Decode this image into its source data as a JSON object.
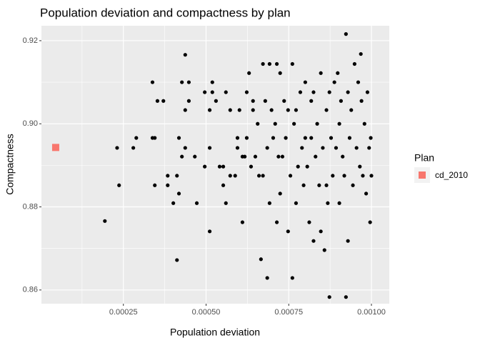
{
  "chart_data": {
    "type": "scatter",
    "title": "Population deviation and compactness by plan",
    "x_label": "Population deviation",
    "y_label": "Compactness",
    "legend_title": "Plan",
    "legend_position": "right",
    "grid": true,
    "xlim": [
      2.2e-06,
      0.001054
    ],
    "ylim": [
      0.8567,
      0.9236
    ],
    "xticks": [
      0.00025,
      {
        "value": 0.0005,
        "label": "0.00050"
      },
      0.00075,
      {
        "value": 0.001,
        "label": "0.00100"
      }
    ],
    "yticks": [
      0.86,
      0.88,
      {
        "value": 0.9,
        "label": "0.90"
      },
      0.92
    ],
    "series": [
      {
        "color": "#000000",
        "marker": "circle",
        "x": [
          0.000194,
          0.000231,
          0.000237,
          0.00028,
          0.000289,
          0.000338,
          0.000338,
          0.000345,
          0.000345,
          0.000353,
          0.000371,
          0.000384,
          0.000384,
          0.000401,
          0.000412,
          0.000412,
          0.000418,
          0.000418,
          0.000427,
          0.000427,
          0.000437,
          0.000437,
          0.000437,
          0.000448,
          0.000448,
          0.000466,
          0.000472,
          0.000496,
          0.000496,
          0.000511,
          0.000511,
          0.000511,
          0.000519,
          0.000519,
          0.00053,
          0.000541,
          0.000552,
          0.000552,
          0.00056,
          0.00056,
          0.000573,
          0.000573,
          0.000588,
          0.000595,
          0.000595,
          0.000601,
          0.00061,
          0.00061,
          0.000617,
          0.000623,
          0.000623,
          0.00063,
          0.000636,
          0.000642,
          0.000642,
          0.000649,
          0.000656,
          0.00066,
          0.000666,
          0.000672,
          0.000672,
          0.000679,
          0.000685,
          0.000685,
          0.000692,
          0.000692,
          0.000698,
          0.000703,
          0.000709,
          0.000714,
          0.000714,
          0.000719,
          0.000724,
          0.000724,
          0.000731,
          0.000736,
          0.000741,
          0.000748,
          0.000748,
          0.000755,
          0.000761,
          0.000761,
          0.000766,
          0.000772,
          0.000772,
          0.000778,
          0.000785,
          0.00079,
          0.000795,
          0.0008,
          0.0008,
          0.000806,
          0.000812,
          0.000818,
          0.000818,
          0.000825,
          0.000825,
          0.000831,
          0.000836,
          0.000842,
          0.000847,
          0.000847,
          0.000853,
          0.000858,
          0.000864,
          0.000864,
          0.000868,
          0.000873,
          0.000873,
          0.000878,
          0.000883,
          0.000888,
          0.000893,
          0.000898,
          0.000903,
          0.000903,
          0.000908,
          0.000913,
          0.000918,
          0.000923,
          0.000923,
          0.000929,
          0.000929,
          0.000934,
          0.000939,
          0.000944,
          0.000949,
          0.000955,
          0.00096,
          0.000965,
          0.000968,
          0.00097,
          0.000974,
          0.000979,
          0.000984,
          0.000988,
          0.000993,
          0.000996,
          0.000998,
          0.001
        ],
        "values": [
          0.8766,
          0.8942,
          0.8852,
          0.8942,
          0.8966,
          0.91,
          0.8966,
          0.8966,
          0.8852,
          0.9055,
          0.9055,
          0.8875,
          0.8852,
          0.8809,
          0.8672,
          0.8875,
          0.8966,
          0.8832,
          0.91,
          0.8921,
          0.9166,
          0.8942,
          0.9033,
          0.9055,
          0.91,
          0.8921,
          0.8809,
          0.9076,
          0.8897,
          0.8942,
          0.9033,
          0.8741,
          0.91,
          0.9076,
          0.9055,
          0.8897,
          0.8852,
          0.8897,
          0.8809,
          0.9076,
          0.9033,
          0.8875,
          0.8875,
          0.8966,
          0.8942,
          0.9033,
          0.8921,
          0.8763,
          0.8921,
          0.8966,
          0.9076,
          0.9122,
          0.8897,
          0.9055,
          0.9033,
          0.8921,
          0.9,
          0.8875,
          0.8674,
          0.9144,
          0.8875,
          0.9055,
          0.8942,
          0.8629,
          0.9144,
          0.8809,
          0.9033,
          0.8966,
          0.9,
          0.9144,
          0.8763,
          0.8921,
          0.9122,
          0.8832,
          0.8921,
          0.9055,
          0.8966,
          0.8741,
          0.9033,
          0.8875,
          0.8629,
          0.9144,
          0.9,
          0.8809,
          0.9033,
          0.8897,
          0.9076,
          0.8942,
          0.8852,
          0.91,
          0.8966,
          0.8897,
          0.8763,
          0.9055,
          0.8966,
          0.8718,
          0.9076,
          0.8921,
          0.9,
          0.8852,
          0.9122,
          0.8741,
          0.8942,
          0.8696,
          0.9033,
          0.8852,
          0.8809,
          0.8583,
          0.9076,
          0.8966,
          0.8875,
          0.91,
          0.8942,
          0.9122,
          0.8809,
          0.9,
          0.9055,
          0.8921,
          0.8875,
          0.9216,
          0.8583,
          0.8718,
          0.9076,
          0.8966,
          0.9033,
          0.8852,
          0.9144,
          0.8942,
          0.91,
          0.8897,
          0.9168,
          0.9055,
          0.8875,
          0.9,
          0.8832,
          0.9076,
          0.8942,
          0.8763,
          0.8966,
          0.8875
        ]
      },
      {
        "name": "cd_2010",
        "color": "#f8766d",
        "marker": "square",
        "x": [
          4.53e-05
        ],
        "values": [
          0.8943
        ]
      }
    ]
  }
}
